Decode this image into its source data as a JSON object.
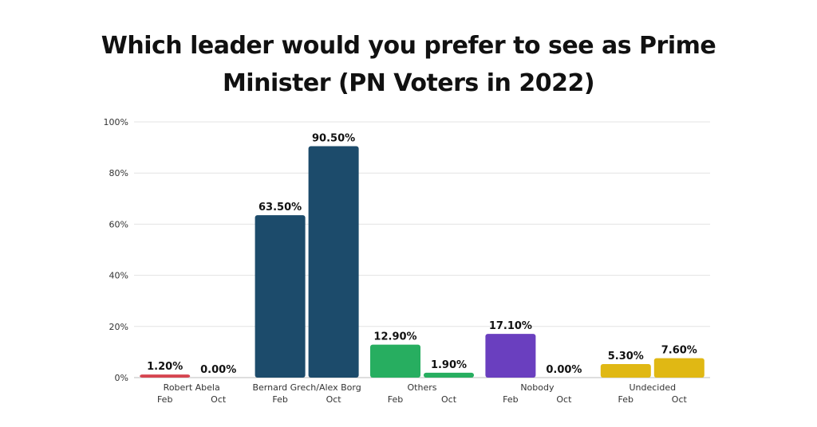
{
  "chart_data": {
    "type": "bar",
    "title_lines": [
      "Which leader would you prefer to see as Prime",
      "Minister (PN Voters in 2022)"
    ],
    "groups": [
      {
        "name": "Robert Abela",
        "color": "#d64550",
        "bars": [
          {
            "period": "Feb",
            "value": 1.2,
            "label": "1.20%"
          },
          {
            "period": "Oct",
            "value": 0.0,
            "label": "0.00%"
          }
        ]
      },
      {
        "name": "Bernard Grech/Alex Borg",
        "color": "#1c4b6b",
        "bars": [
          {
            "period": "Feb",
            "value": 63.5,
            "label": "63.50%"
          },
          {
            "period": "Oct",
            "value": 90.5,
            "label": "90.50%"
          }
        ]
      },
      {
        "name": "Others",
        "color": "#27ae60",
        "bars": [
          {
            "period": "Feb",
            "value": 12.9,
            "label": "12.90%"
          },
          {
            "period": "Oct",
            "value": 1.9,
            "label": "1.90%"
          }
        ]
      },
      {
        "name": "Nobody",
        "color": "#6a3fbf",
        "bars": [
          {
            "period": "Feb",
            "value": 17.1,
            "label": "17.10%"
          },
          {
            "period": "Oct",
            "value": 0.0,
            "label": "0.00%"
          }
        ]
      },
      {
        "name": "Undecided",
        "color": "#e0b814",
        "bars": [
          {
            "period": "Feb",
            "value": 5.3,
            "label": "5.30%"
          },
          {
            "period": "Oct",
            "value": 7.6,
            "label": "7.60%"
          }
        ]
      }
    ],
    "y_ticks": [
      "0%",
      "20%",
      "40%",
      "60%",
      "80%",
      "100%"
    ],
    "ylim": [
      0,
      100
    ],
    "grid": true,
    "legend": "none"
  }
}
